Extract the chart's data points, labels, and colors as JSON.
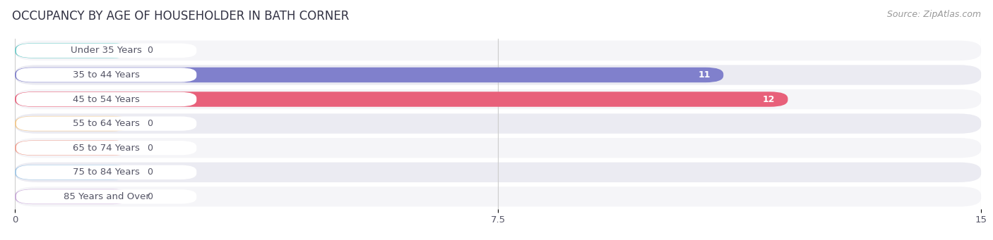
{
  "title": "OCCUPANCY BY AGE OF HOUSEHOLDER IN BATH CORNER",
  "source": "Source: ZipAtlas.com",
  "categories": [
    "Under 35 Years",
    "35 to 44 Years",
    "45 to 54 Years",
    "55 to 64 Years",
    "65 to 74 Years",
    "75 to 84 Years",
    "85 Years and Over"
  ],
  "values": [
    0,
    11,
    12,
    0,
    0,
    0,
    0
  ],
  "bar_colors": [
    "#6ecbc9",
    "#8080cc",
    "#e8607a",
    "#f5c98a",
    "#f0a090",
    "#a0c8e8",
    "#c8a8d8"
  ],
  "xlim": [
    0,
    15
  ],
  "xticks": [
    0,
    7.5,
    15
  ],
  "title_fontsize": 12,
  "label_fontsize": 9.5,
  "value_fontsize": 9,
  "source_fontsize": 9,
  "background_color": "#ffffff",
  "row_bg_color_odd": "#f5f5f8",
  "row_bg_color_even": "#ebebf2",
  "label_bg_color": "#ffffff",
  "grid_color": "#cccccc",
  "text_color": "#555566",
  "title_color": "#333344"
}
